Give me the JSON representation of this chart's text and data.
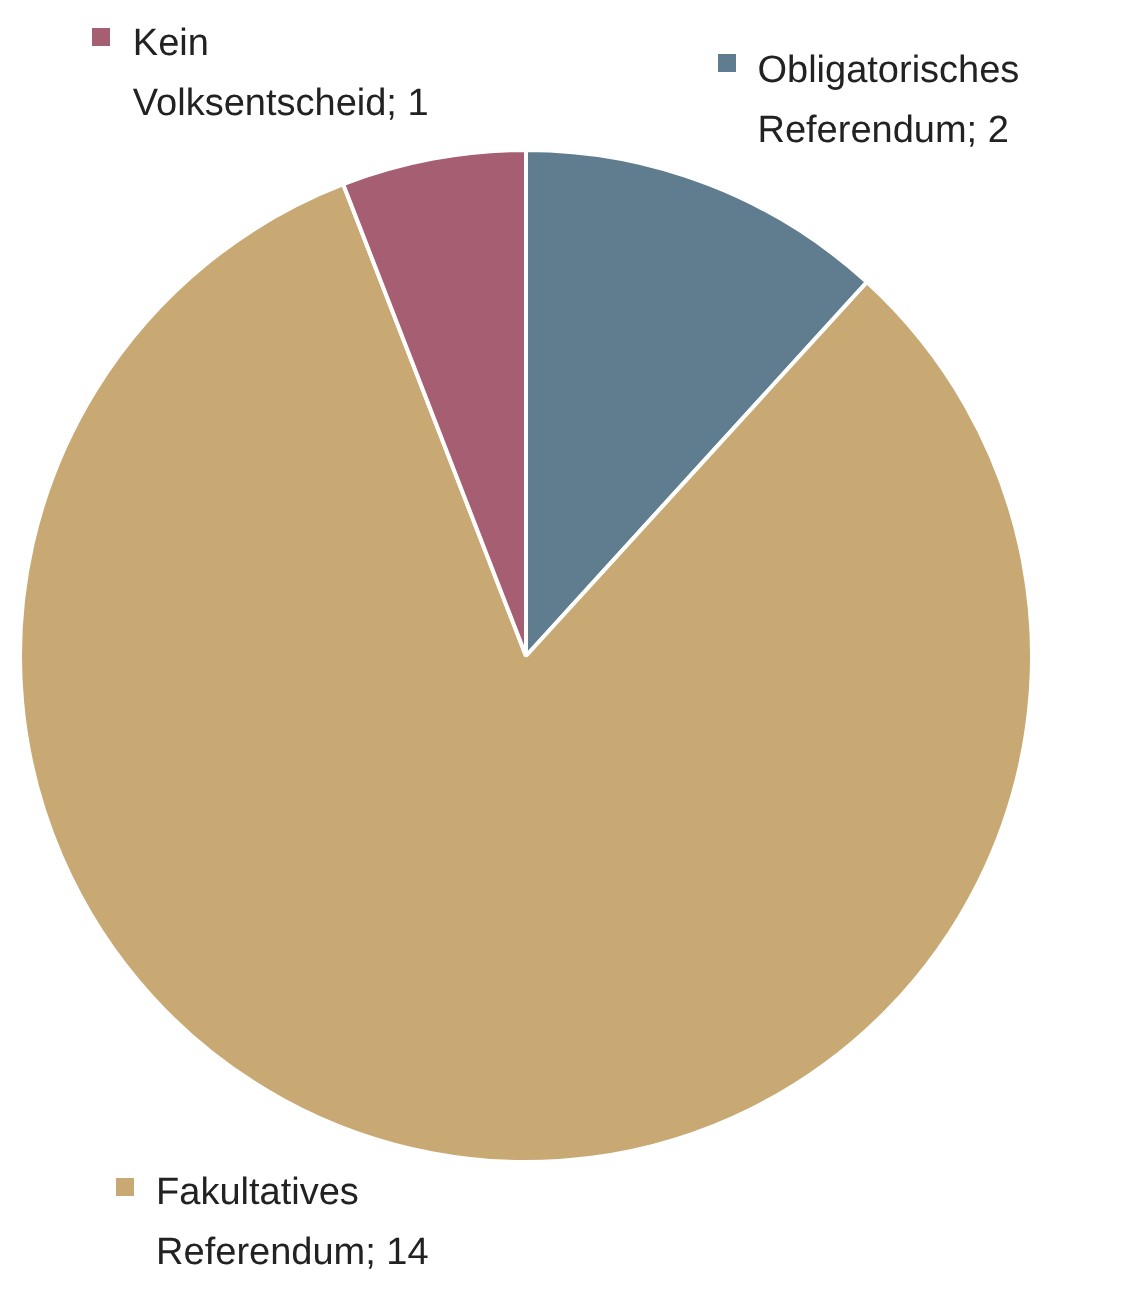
{
  "chart_data": {
    "type": "pie",
    "categories": [
      "Obligatorisches Referendum",
      "Fakultatives Referendum",
      "Kein Volksentscheid"
    ],
    "values": [
      2,
      14,
      1
    ],
    "value_labels": [
      "; 2",
      "; 14",
      "; 1"
    ],
    "colors": [
      "#607d8f",
      "#c8a873",
      "#a65e72"
    ],
    "legend": "top"
  }
}
